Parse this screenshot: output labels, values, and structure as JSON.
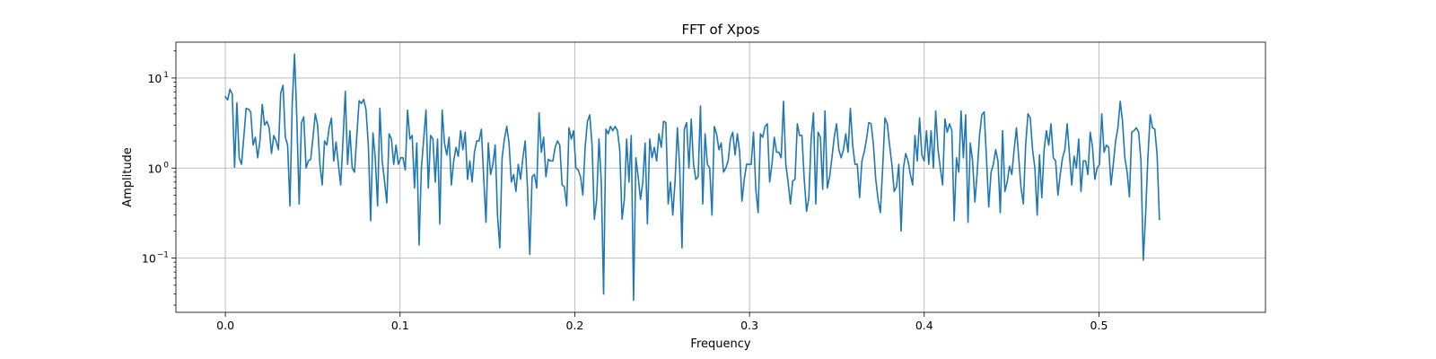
{
  "chart_data": {
    "type": "line",
    "title": "FFT of Xpos",
    "xlabel": "Frequency",
    "ylabel": "Amplitude",
    "yscale": "log",
    "xlim": [
      -0.0283,
      0.5953
    ],
    "ylim": [
      0.025,
      25
    ],
    "grid": true,
    "x_ticks": [
      {
        "value": 0.0,
        "label": "0.0"
      },
      {
        "value": 0.1,
        "label": "0.1"
      },
      {
        "value": 0.2,
        "label": "0.2"
      },
      {
        "value": 0.3,
        "label": "0.3"
      },
      {
        "value": 0.4,
        "label": "0.4"
      },
      {
        "value": 0.5,
        "label": "0.5"
      }
    ],
    "y_ticks": [
      {
        "value": 0.1,
        "mantissa": "10",
        "exponent": "−1"
      },
      {
        "value": 1,
        "mantissa": "10",
        "exponent": "0"
      },
      {
        "value": 10,
        "mantissa": "10",
        "exponent": "1"
      }
    ],
    "series": [
      {
        "color": "#1f77b4",
        "x_start": 0.0,
        "x_step": 0.00132,
        "y": [
          6.2,
          5.7,
          7.5,
          6.6,
          1.02,
          5.3,
          1.3,
          1.1,
          2.2,
          4.6,
          4.5,
          4.2,
          1.8,
          2.2,
          1.3,
          2.0,
          5.1,
          3.0,
          3.3,
          2.8,
          1.45,
          2.3,
          2.0,
          1.6,
          6.8,
          8.3,
          2.2,
          1.8,
          0.38,
          5.2,
          18.5,
          3.5,
          0.4,
          3.2,
          3.7,
          1.0,
          1.2,
          1.25,
          2.2,
          4.0,
          3.0,
          1.1,
          0.65,
          2.0,
          1.8,
          2.8,
          3.6,
          1.2,
          1.95,
          1.1,
          0.65,
          2.0,
          7.1,
          1.1,
          2.6,
          1.0,
          0.9,
          2.3,
          5.6,
          5.2,
          5.8,
          4.4,
          1.8,
          0.26,
          2.45,
          1.3,
          0.38,
          4.6,
          1.2,
          0.72,
          0.41,
          2.4,
          2.1,
          1.1,
          1.8,
          1.1,
          1.3,
          1.3,
          0.95,
          4.4,
          2.1,
          2.3,
          0.6,
          1.9,
          0.14,
          1.0,
          2.1,
          4.4,
          0.6,
          2.3,
          2.1,
          0.7,
          2.1,
          0.24,
          4.4,
          1.9,
          1.4,
          2.2,
          0.65,
          1.2,
          1.7,
          1.35,
          2.6,
          1.6,
          2.5,
          0.75,
          1.2,
          0.7,
          1.5,
          2.0,
          2.0,
          2.7,
          0.8,
          0.25,
          1.9,
          0.85,
          1.1,
          1.8,
          0.3,
          0.13,
          1.3,
          2.1,
          2.9,
          1.9,
          0.7,
          0.85,
          0.55,
          1.1,
          0.75,
          1.3,
          2.0,
          0.6,
          0.11,
          0.8,
          0.85,
          0.6,
          4.1,
          1.5,
          2.2,
          0.8,
          1.25,
          1.2,
          1.2,
          1.7,
          2.0,
          1.8,
          0.65,
          0.62,
          0.38,
          2.8,
          2.1,
          2.6,
          1.0,
          0.95,
          0.8,
          0.5,
          1.7,
          3.3,
          3.9,
          1.8,
          0.27,
          0.45,
          2.1,
          0.7,
          0.04,
          2.7,
          2.4,
          2.9,
          2.6,
          2.9,
          2.6,
          1.6,
          0.27,
          0.45,
          2.1,
          0.7,
          2.3,
          0.034,
          1.3,
          0.8,
          0.45,
          0.7,
          1.9,
          0.24,
          2.1,
          1.3,
          1.7,
          1.2,
          2.4,
          1.7,
          3.3,
          3.2,
          0.4,
          0.7,
          0.3,
          0.72,
          2.8,
          1.0,
          0.13,
          2.7,
          3.2,
          1.0,
          3.5,
          1.1,
          0.75,
          0.8,
          4.9,
          0.4,
          2.4,
          1.1,
          1.0,
          0.3,
          2.9,
          2.4,
          1.6,
          1.9,
          0.9,
          1.0,
          1.2,
          2.1,
          2.5,
          1.4,
          2.4,
          1.5,
          0.43,
          0.75,
          1.1,
          1.1,
          1.1,
          2.5,
          0.58,
          0.32,
          2.4,
          2.2,
          2.9,
          3.1,
          0.7,
          1.1,
          2.2,
          1.5,
          1.5,
          1.3,
          5.5,
          1.1,
          0.7,
          0.4,
          0.72,
          0.75,
          3.1,
          2.3,
          2.3,
          0.75,
          0.33,
          0.47,
          2.1,
          4.1,
          0.4,
          2.5,
          2.2,
          0.58,
          4.3,
          0.6,
          0.8,
          1.3,
          2.2,
          3.1,
          1.6,
          1.3,
          1.6,
          2.4,
          1.5,
          4.6,
          1.8,
          1.1,
          1.1,
          0.47,
          1.2,
          1.5,
          2.1,
          3.2,
          3.1,
          1.8,
          0.75,
          0.45,
          0.32,
          1.0,
          3.6,
          3.1,
          1.8,
          1.1,
          0.55,
          0.62,
          1.1,
          0.2,
          1.0,
          1.45,
          1.2,
          0.85,
          0.65,
          2.3,
          1.2,
          3.6,
          1.4,
          1.2,
          2.6,
          1.1,
          2.6,
          1.0,
          4.3,
          1.6,
          1.0,
          0.65,
          3.5,
          2.5,
          3.1,
          2.6,
          0.26,
          1.3,
          0.9,
          4.3,
          1.3,
          3.9,
          0.25,
          1.9,
          1.2,
          0.42,
          0.9,
          2.3,
          3.9,
          4.2,
          1.3,
          0.37,
          0.9,
          1.1,
          1.6,
          1.2,
          0.32,
          2.6,
          0.55,
          0.7,
          1.05,
          0.85,
          1.6,
          2.8,
          1.3,
          0.6,
          0.4,
          1.8,
          4.0,
          3.6,
          1.6,
          1.0,
          0.3,
          1.4,
          0.47,
          1.6,
          2.6,
          1.8,
          3.1,
          1.3,
          1.2,
          0.5,
          0.85,
          1.3,
          1.6,
          3.1,
          1.4,
          0.65,
          1.35,
          1.0,
          2.1,
          0.55,
          1.2,
          1.2,
          0.85,
          2.5,
          1.7,
          0.75,
          1.0,
          1.1,
          4.0,
          1.5,
          1.8,
          1.7,
          0.65,
          1.1,
          2.0,
          2.8,
          5.5,
          3.3,
          1.3,
          0.9,
          0.48,
          2.5,
          2.6,
          2.8,
          2.5,
          1.2,
          0.095,
          0.3,
          1.3,
          3.9,
          2.8,
          2.7,
          1.4,
          0.27
        ]
      }
    ]
  }
}
